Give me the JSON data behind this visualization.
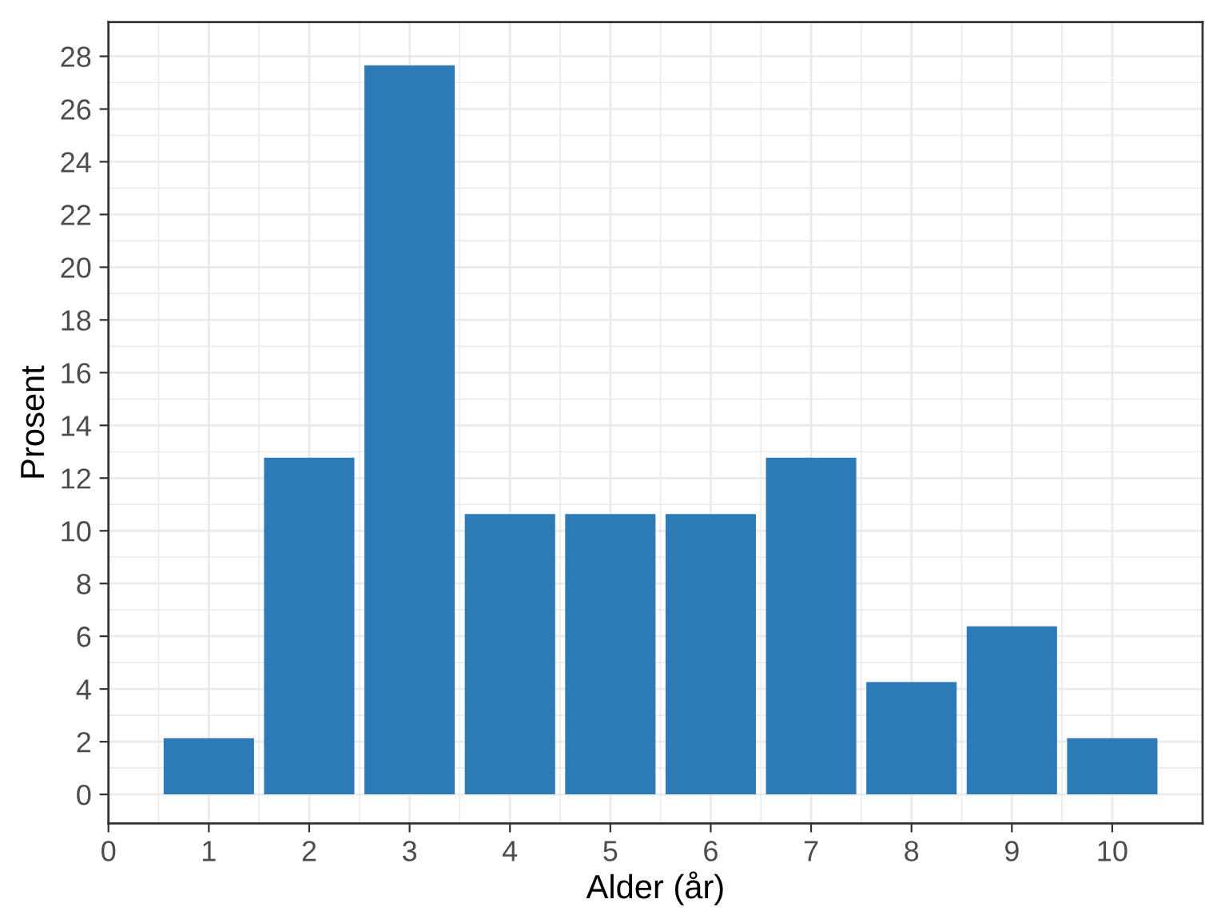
{
  "chart_data": {
    "type": "bar",
    "xlabel": "Alder (år)",
    "ylabel": "Prosent",
    "x": [
      1,
      2,
      3,
      4,
      5,
      6,
      7,
      8,
      9,
      10
    ],
    "values": [
      2.13,
      12.77,
      27.66,
      10.64,
      10.64,
      10.64,
      12.77,
      4.26,
      6.38,
      2.13
    ],
    "color": "#2c7bb6",
    "xlim": [
      0,
      10.9
    ],
    "xticks": [
      0,
      1,
      2,
      3,
      4,
      5,
      6,
      7,
      8,
      9,
      10
    ],
    "ylim": [
      -1.1,
      29.3
    ],
    "yticks": [
      0,
      2,
      4,
      6,
      8,
      10,
      12,
      14,
      16,
      18,
      20,
      22,
      24,
      26,
      28
    ],
    "grid": true
  }
}
